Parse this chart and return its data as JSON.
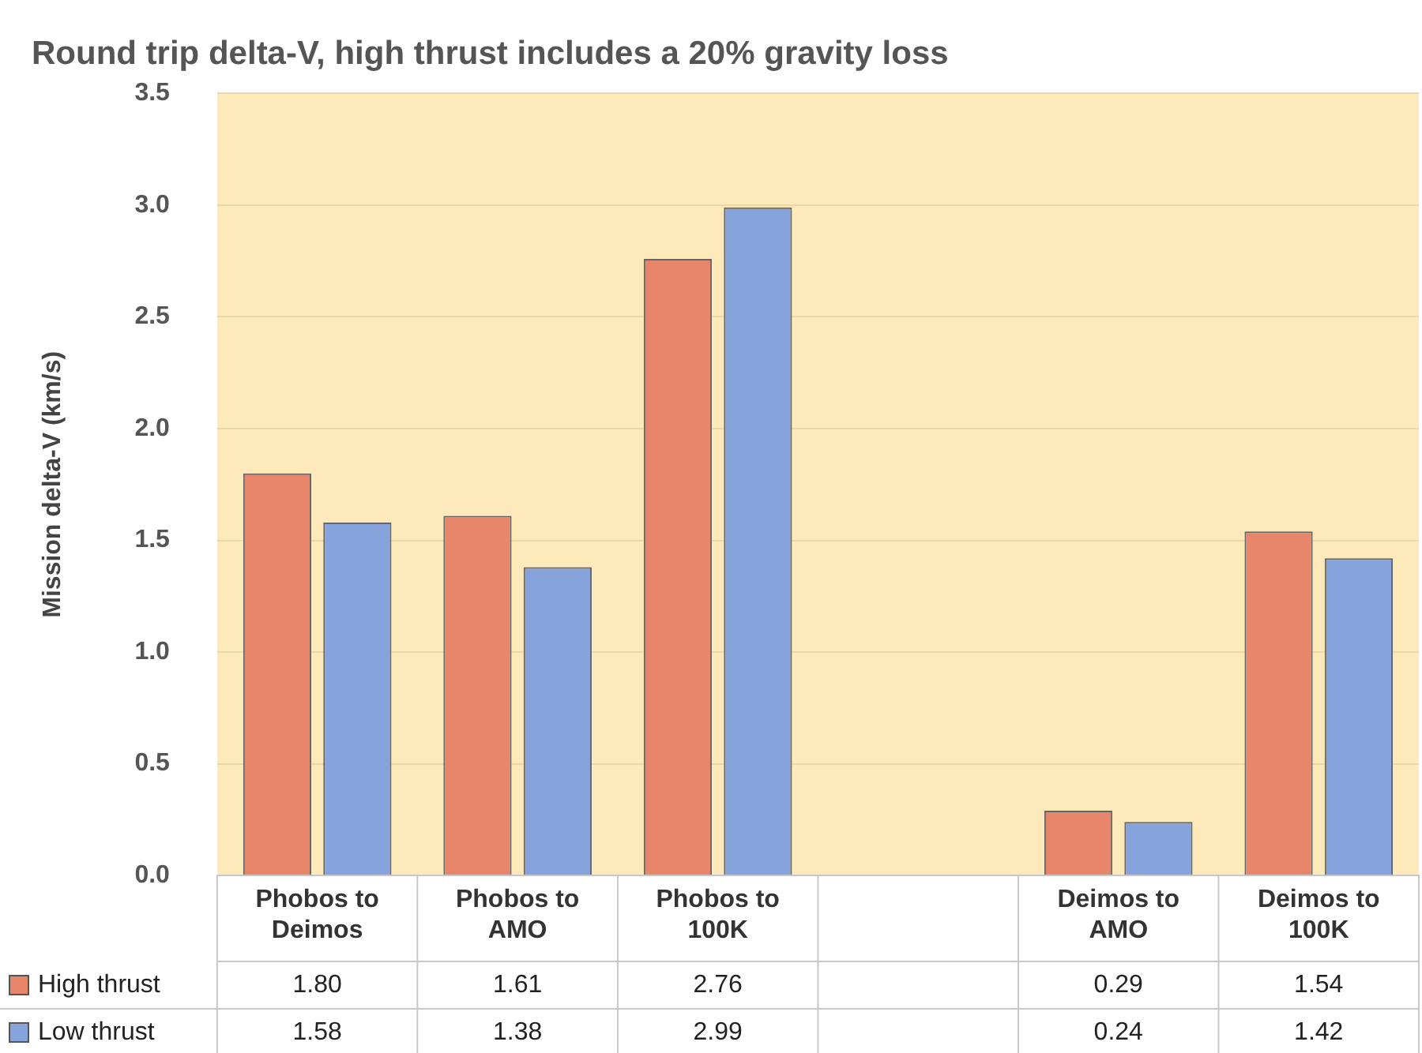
{
  "chart_data": {
    "type": "bar",
    "title": "Round trip delta-V, high thrust includes a 20% gravity loss",
    "ylabel": "Mission delta-V (km/s)",
    "categories": [
      "Phobos to Deimos",
      "Phobos to AMO",
      "Phobos to 100K",
      null,
      "Deimos to AMO",
      "Deimos to 100K"
    ],
    "series": [
      {
        "name": "High thrust",
        "color": "#e8866c",
        "values": [
          1.8,
          1.61,
          2.76,
          null,
          0.29,
          1.54
        ],
        "value_labels": [
          "1.80",
          "1.61",
          "2.76",
          null,
          "0.29",
          "1.54"
        ]
      },
      {
        "name": "Low thrust",
        "color": "#86a3dc",
        "values": [
          1.58,
          1.38,
          2.99,
          null,
          0.24,
          1.42
        ],
        "value_labels": [
          "1.58",
          "1.38",
          "2.99",
          null,
          "0.24",
          "1.42"
        ]
      }
    ],
    "ylim": [
      0,
      3.5
    ],
    "yticks": [
      {
        "value": 0,
        "label": "0.0"
      },
      {
        "value": 0.5,
        "label": "0.5"
      },
      {
        "value": 1,
        "label": "1.0"
      },
      {
        "value": 1.5,
        "label": "1.5"
      },
      {
        "value": 2,
        "label": "2.0"
      },
      {
        "value": 2.5,
        "label": "2.5"
      },
      {
        "value": 3,
        "label": "3.0"
      },
      {
        "value": 3.5,
        "label": "3.5"
      }
    ],
    "grid": "y",
    "legend": "bottom left"
  }
}
